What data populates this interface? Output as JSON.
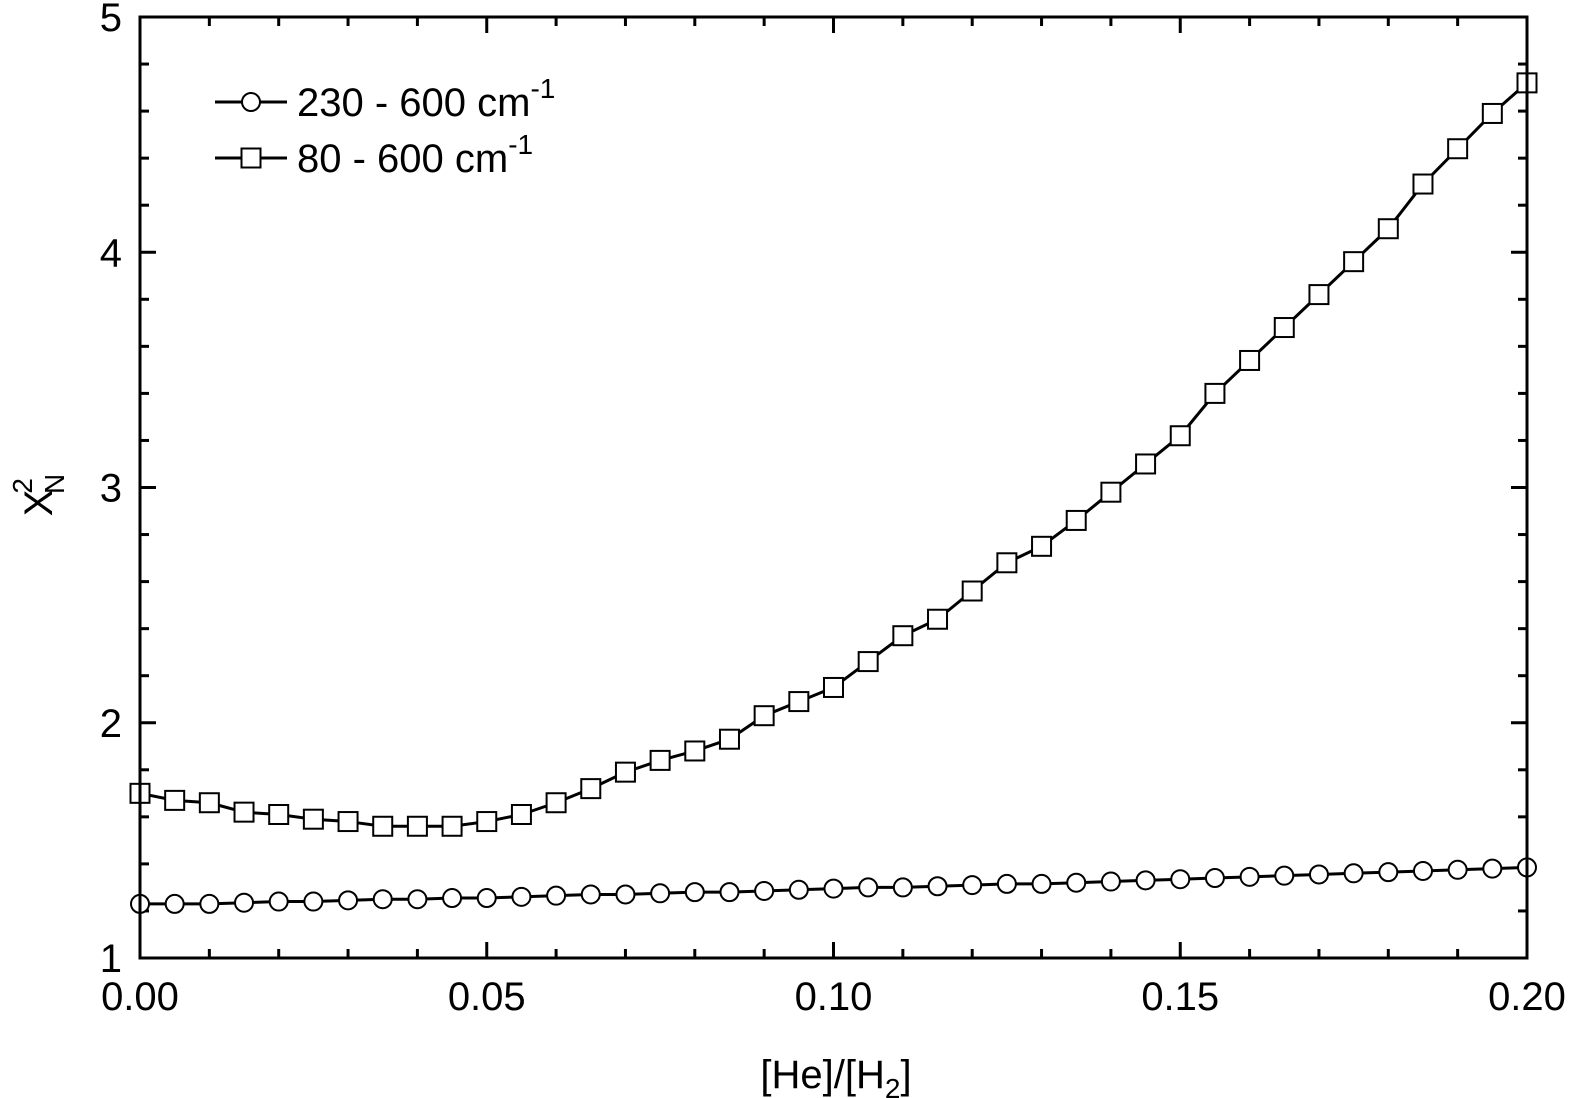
{
  "chart_data": {
    "type": "line",
    "title": "",
    "xlabel": {
      "main": "[He]/[H",
      "sub": "2",
      "tail": "]"
    },
    "ylabel": {
      "main": "X",
      "sup": "2",
      "sub": "N"
    },
    "xlim": [
      0,
      0.2
    ],
    "ylim": [
      1,
      5
    ],
    "xticks": [
      0,
      0.05,
      0.1,
      0.15,
      0.2
    ],
    "xtick_labels": [
      "0.00",
      "0.05",
      "0.10",
      "0.15",
      "0.20"
    ],
    "yticks": [
      1,
      2,
      3,
      4,
      5
    ],
    "ytick_labels": [
      "1",
      "2",
      "3",
      "4",
      "5"
    ],
    "grid": false,
    "legend_position": "top-left",
    "x": [
      0,
      0.005,
      0.01,
      0.015,
      0.02,
      0.025,
      0.03,
      0.035,
      0.04,
      0.045,
      0.05,
      0.055,
      0.06,
      0.065,
      0.07,
      0.075,
      0.08,
      0.085,
      0.09,
      0.095,
      0.1,
      0.105,
      0.11,
      0.115,
      0.12,
      0.125,
      0.13,
      0.135,
      0.14,
      0.145,
      0.15,
      0.155,
      0.16,
      0.165,
      0.17,
      0.175,
      0.18,
      0.185,
      0.19,
      0.195,
      0.2
    ],
    "series": [
      {
        "name": "230 - 600 cm",
        "name_sup": "-1",
        "marker": "circle",
        "values": [
          1.23,
          1.23,
          1.23,
          1.235,
          1.24,
          1.24,
          1.245,
          1.25,
          1.25,
          1.255,
          1.255,
          1.26,
          1.265,
          1.27,
          1.27,
          1.275,
          1.28,
          1.28,
          1.285,
          1.29,
          1.295,
          1.3,
          1.3,
          1.305,
          1.31,
          1.315,
          1.315,
          1.32,
          1.325,
          1.33,
          1.335,
          1.34,
          1.345,
          1.35,
          1.355,
          1.36,
          1.365,
          1.37,
          1.375,
          1.38,
          1.385
        ]
      },
      {
        "name": "80 - 600 cm",
        "name_sup": "-1",
        "marker": "square",
        "values": [
          1.7,
          1.67,
          1.66,
          1.62,
          1.61,
          1.59,
          1.58,
          1.56,
          1.56,
          1.56,
          1.58,
          1.61,
          1.66,
          1.72,
          1.79,
          1.84,
          1.88,
          1.93,
          2.03,
          2.09,
          2.15,
          2.26,
          2.37,
          2.44,
          2.56,
          2.68,
          2.75,
          2.86,
          2.98,
          3.1,
          3.22,
          3.4,
          3.54,
          3.68,
          3.82,
          3.96,
          4.1,
          4.29,
          4.44,
          4.59,
          4.72
        ]
      }
    ]
  }
}
